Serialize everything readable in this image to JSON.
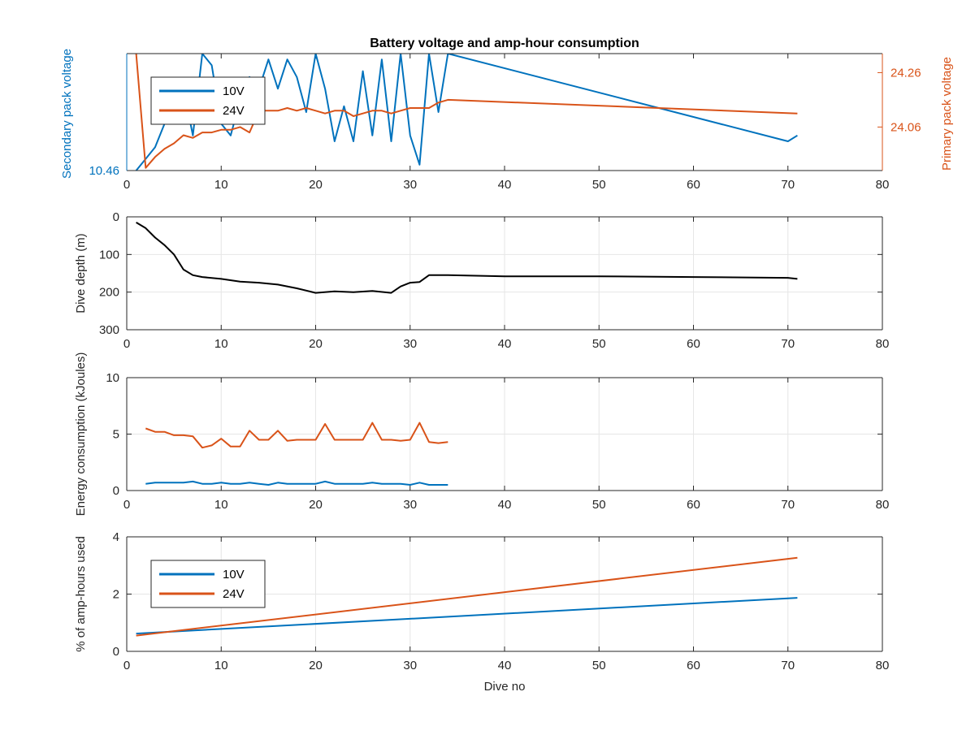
{
  "figure": {
    "background": "#ffffff",
    "colors": {
      "blue": "#0072BD",
      "orange": "#D95319",
      "black": "#000000",
      "grid": "#e6e6e6",
      "axis": "#262626"
    }
  },
  "chart_data": [
    {
      "type": "line",
      "title": "Battery voltage and amp-hour consumption",
      "xlabel": "",
      "ylabel_left": "Secondary pack voltage",
      "ylabel_right": "Primary pack voltage",
      "xlim": [
        0,
        80
      ],
      "xticks": [
        0,
        10,
        20,
        30,
        40,
        50,
        60,
        70,
        80
      ],
      "ylim_left": [
        10.46,
        10.66
      ],
      "yticks_left": [
        10.46
      ],
      "ytick_labels_left": [
        "10.46"
      ],
      "ylim_right": [
        23.9,
        24.33
      ],
      "yticks_right": [
        24.06,
        24.26
      ],
      "ytick_labels_right": [
        "24.06",
        "24.26"
      ],
      "grid": false,
      "legend": {
        "placement": "top-left",
        "entries": [
          "10V",
          "24V"
        ]
      },
      "series": [
        {
          "name": "10V",
          "color": "#0072BD",
          "axis": "left",
          "x": [
            1,
            2,
            3,
            4,
            5,
            6,
            7,
            8,
            9,
            10,
            11,
            12,
            13,
            14,
            15,
            16,
            17,
            18,
            19,
            20,
            21,
            22,
            23,
            24,
            25,
            26,
            27,
            28,
            29,
            30,
            31,
            32,
            33,
            34,
            70,
            71
          ],
          "y": [
            10.46,
            10.48,
            10.5,
            10.54,
            10.54,
            10.6,
            10.52,
            10.66,
            10.64,
            10.54,
            10.52,
            10.58,
            10.62,
            10.6,
            10.65,
            10.6,
            10.65,
            10.62,
            10.56,
            10.66,
            10.6,
            10.51,
            10.57,
            10.51,
            10.63,
            10.52,
            10.65,
            10.51,
            10.66,
            10.52,
            10.47,
            10.66,
            10.56,
            10.66,
            10.51,
            10.52
          ]
        },
        {
          "name": "24V",
          "color": "#D95319",
          "axis": "right",
          "x": [
            1,
            2,
            3,
            4,
            5,
            6,
            7,
            8,
            9,
            10,
            11,
            12,
            13,
            14,
            15,
            16,
            17,
            18,
            19,
            20,
            21,
            22,
            23,
            24,
            25,
            26,
            27,
            28,
            29,
            30,
            31,
            32,
            33,
            34,
            71
          ],
          "y": [
            24.33,
            23.91,
            23.95,
            23.98,
            24.0,
            24.03,
            24.02,
            24.04,
            24.04,
            24.05,
            24.05,
            24.06,
            24.04,
            24.12,
            24.12,
            24.12,
            24.13,
            24.12,
            24.13,
            24.12,
            24.11,
            24.12,
            24.12,
            24.1,
            24.11,
            24.12,
            24.12,
            24.11,
            24.12,
            24.13,
            24.13,
            24.13,
            24.15,
            24.16,
            24.11
          ]
        }
      ]
    },
    {
      "type": "line",
      "title": "",
      "xlabel": "",
      "ylabel": "Dive depth (m)",
      "xlim": [
        0,
        80
      ],
      "xticks": [
        0,
        10,
        20,
        30,
        40,
        50,
        60,
        70,
        80
      ],
      "ylim": [
        0,
        300
      ],
      "y_reversed": true,
      "yticks": [
        0,
        100,
        200,
        300
      ],
      "grid": true,
      "series": [
        {
          "color": "#000000",
          "x": [
            1,
            2,
            3,
            4,
            5,
            6,
            7,
            8,
            10,
            12,
            14,
            16,
            18,
            20,
            22,
            24,
            26,
            28,
            29,
            30,
            31,
            32,
            34,
            40,
            50,
            60,
            70,
            71
          ],
          "y": [
            15,
            30,
            55,
            75,
            100,
            140,
            155,
            160,
            165,
            172,
            175,
            180,
            190,
            202,
            198,
            200,
            197,
            202,
            185,
            175,
            173,
            155,
            155,
            158,
            158,
            160,
            162,
            165
          ]
        }
      ]
    },
    {
      "type": "line",
      "title": "",
      "xlabel": "",
      "ylabel": "Energy consumption (kJoules)",
      "xlim": [
        0,
        80
      ],
      "xticks": [
        0,
        10,
        20,
        30,
        40,
        50,
        60,
        70,
        80
      ],
      "ylim": [
        0,
        10
      ],
      "yticks": [
        0,
        5,
        10
      ],
      "grid": true,
      "series": [
        {
          "color": "#0072BD",
          "x": [
            2,
            3,
            4,
            5,
            6,
            7,
            8,
            9,
            10,
            11,
            12,
            13,
            14,
            15,
            16,
            17,
            18,
            19,
            20,
            21,
            22,
            23,
            24,
            25,
            26,
            27,
            28,
            29,
            30,
            31,
            32,
            33,
            34
          ],
          "y": [
            0.6,
            0.7,
            0.7,
            0.7,
            0.7,
            0.8,
            0.6,
            0.6,
            0.7,
            0.6,
            0.6,
            0.7,
            0.6,
            0.5,
            0.7,
            0.6,
            0.6,
            0.6,
            0.6,
            0.8,
            0.6,
            0.6,
            0.6,
            0.6,
            0.7,
            0.6,
            0.6,
            0.6,
            0.5,
            0.7,
            0.5,
            0.5,
            0.5
          ]
        },
        {
          "color": "#D95319",
          "x": [
            2,
            3,
            4,
            5,
            6,
            7,
            8,
            9,
            10,
            11,
            12,
            13,
            14,
            15,
            16,
            17,
            18,
            19,
            20,
            21,
            22,
            23,
            24,
            25,
            26,
            27,
            28,
            29,
            30,
            31,
            32,
            33,
            34
          ],
          "y": [
            5.5,
            5.2,
            5.2,
            4.9,
            4.9,
            4.8,
            3.8,
            4.0,
            4.6,
            3.9,
            3.9,
            5.3,
            4.5,
            4.5,
            5.3,
            4.4,
            4.5,
            4.5,
            4.5,
            5.9,
            4.5,
            4.5,
            4.5,
            4.5,
            6.0,
            4.5,
            4.5,
            4.4,
            4.5,
            6.0,
            4.3,
            4.2,
            4.3
          ]
        }
      ]
    },
    {
      "type": "line",
      "title": "",
      "xlabel": "Dive no",
      "ylabel": "% of amp-hours used",
      "xlim": [
        0,
        80
      ],
      "xticks": [
        0,
        10,
        20,
        30,
        40,
        50,
        60,
        70,
        80
      ],
      "ylim": [
        0,
        4
      ],
      "yticks": [
        0,
        2,
        4
      ],
      "grid": true,
      "legend": {
        "placement": "top-left",
        "entries": [
          "10V",
          "24V"
        ]
      },
      "series": [
        {
          "name": "10V",
          "color": "#0072BD",
          "x": [
            1,
            71
          ],
          "y": [
            0.62,
            1.87
          ]
        },
        {
          "name": "24V",
          "color": "#D95319",
          "x": [
            1,
            71
          ],
          "y": [
            0.55,
            3.27
          ]
        }
      ]
    }
  ]
}
